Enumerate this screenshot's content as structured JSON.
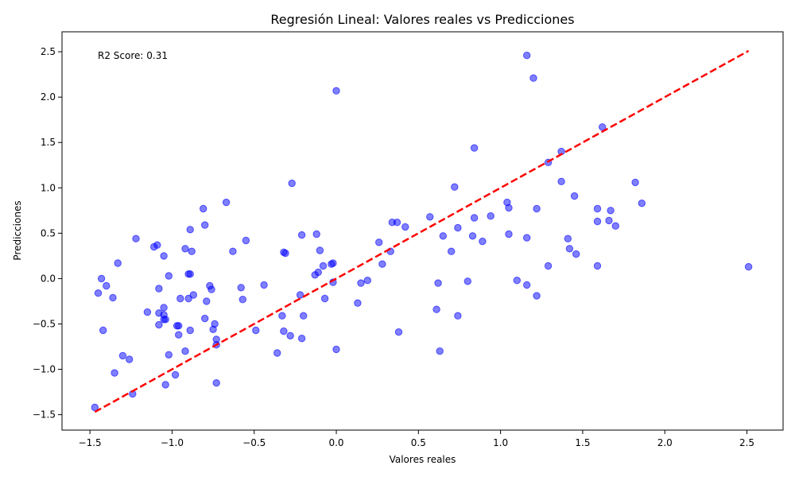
{
  "chart_data": {
    "type": "scatter",
    "title": "Regresión Lineal: Valores reales vs Predicciones",
    "xlabel": "Valores reales",
    "ylabel": "Predicciones",
    "xlim": [
      -1.67,
      2.72
    ],
    "ylim": [
      -1.67,
      2.72
    ],
    "xticks": [
      -1.5,
      -1.0,
      -0.5,
      0.0,
      0.5,
      1.0,
      1.5,
      2.0,
      2.5
    ],
    "yticks": [
      -1.5,
      -1.0,
      -0.5,
      0.0,
      0.5,
      1.0,
      1.5,
      2.0,
      2.5
    ],
    "xtick_labels": [
      "−1.5",
      "−1.0",
      "−0.5",
      "0.0",
      "0.5",
      "1.0",
      "1.5",
      "2.0",
      "2.5"
    ],
    "ytick_labels": [
      "−1.5",
      "−1.0",
      "−0.5",
      "0.0",
      "0.5",
      "1.0",
      "1.5",
      "2.0",
      "2.5"
    ],
    "annotation": "R2 Score: 0.31",
    "grid": false,
    "point_color": "#0000ff",
    "line_color": "#ff0000",
    "reference_line": {
      "x": [
        -1.47,
        2.51
      ],
      "y": [
        -1.47,
        2.51
      ]
    },
    "points": [
      [
        1.16,
        2.46
      ],
      [
        1.2,
        2.21
      ],
      [
        0.0,
        2.07
      ],
      [
        1.62,
        1.67
      ],
      [
        0.84,
        1.44
      ],
      [
        1.37,
        1.4
      ],
      [
        1.29,
        1.28
      ],
      [
        -0.27,
        1.05
      ],
      [
        1.37,
        1.07
      ],
      [
        1.82,
        1.06
      ],
      [
        0.72,
        1.01
      ],
      [
        1.45,
        0.91
      ],
      [
        -0.67,
        0.84
      ],
      [
        1.04,
        0.84
      ],
      [
        1.86,
        0.83
      ],
      [
        -0.81,
        0.77
      ],
      [
        1.05,
        0.78
      ],
      [
        1.22,
        0.77
      ],
      [
        1.59,
        0.77
      ],
      [
        1.67,
        0.75
      ],
      [
        0.94,
        0.69
      ],
      [
        0.57,
        0.68
      ],
      [
        0.84,
        0.67
      ],
      [
        1.59,
        0.63
      ],
      [
        1.66,
        0.64
      ],
      [
        0.34,
        0.62
      ],
      [
        0.37,
        0.62
      ],
      [
        -0.8,
        0.59
      ],
      [
        1.7,
        0.58
      ],
      [
        0.42,
        0.57
      ],
      [
        0.74,
        0.56
      ],
      [
        -0.89,
        0.54
      ],
      [
        -0.21,
        0.48
      ],
      [
        -0.12,
        0.49
      ],
      [
        0.65,
        0.47
      ],
      [
        0.83,
        0.47
      ],
      [
        1.05,
        0.49
      ],
      [
        1.16,
        0.45
      ],
      [
        -1.22,
        0.44
      ],
      [
        1.41,
        0.44
      ],
      [
        -0.55,
        0.42
      ],
      [
        0.89,
        0.41
      ],
      [
        0.26,
        0.4
      ],
      [
        -1.09,
        0.37
      ],
      [
        -1.11,
        0.35
      ],
      [
        -0.92,
        0.33
      ],
      [
        1.42,
        0.33
      ],
      [
        -0.88,
        0.3
      ],
      [
        -0.63,
        0.3
      ],
      [
        -0.32,
        0.29
      ],
      [
        -0.31,
        0.28
      ],
      [
        -0.1,
        0.31
      ],
      [
        0.33,
        0.3
      ],
      [
        0.7,
        0.3
      ],
      [
        1.46,
        0.27
      ],
      [
        -1.05,
        0.25
      ],
      [
        -1.33,
        0.17
      ],
      [
        0.28,
        0.16
      ],
      [
        -0.08,
        0.14
      ],
      [
        -0.03,
        0.16
      ],
      [
        -0.02,
        0.17
      ],
      [
        1.29,
        0.14
      ],
      [
        1.59,
        0.14
      ],
      [
        2.51,
        0.13
      ],
      [
        -0.11,
        0.07
      ],
      [
        -0.13,
        0.04
      ],
      [
        -0.9,
        0.05
      ],
      [
        -0.89,
        0.05
      ],
      [
        -1.02,
        0.03
      ],
      [
        -1.43,
        0.0
      ],
      [
        0.19,
        -0.02
      ],
      [
        0.8,
        -0.03
      ],
      [
        1.1,
        -0.02
      ],
      [
        -0.02,
        -0.04
      ],
      [
        0.15,
        -0.05
      ],
      [
        0.62,
        -0.05
      ],
      [
        1.16,
        -0.07
      ],
      [
        -1.4,
        -0.08
      ],
      [
        -0.77,
        -0.08
      ],
      [
        -0.58,
        -0.1
      ],
      [
        -0.44,
        -0.07
      ],
      [
        -1.08,
        -0.11
      ],
      [
        -0.76,
        -0.12
      ],
      [
        -1.45,
        -0.16
      ],
      [
        -0.22,
        -0.18
      ],
      [
        -0.87,
        -0.18
      ],
      [
        1.22,
        -0.19
      ],
      [
        -1.36,
        -0.21
      ],
      [
        -0.95,
        -0.22
      ],
      [
        -0.9,
        -0.22
      ],
      [
        -0.57,
        -0.23
      ],
      [
        -0.07,
        -0.22
      ],
      [
        -0.79,
        -0.25
      ],
      [
        0.13,
        -0.27
      ],
      [
        -1.05,
        -0.32
      ],
      [
        0.61,
        -0.34
      ],
      [
        -1.15,
        -0.37
      ],
      [
        -1.08,
        -0.38
      ],
      [
        -1.05,
        -0.4
      ],
      [
        -0.33,
        -0.41
      ],
      [
        -0.2,
        -0.41
      ],
      [
        0.74,
        -0.41
      ],
      [
        -1.05,
        -0.45
      ],
      [
        -1.04,
        -0.45
      ],
      [
        -0.8,
        -0.44
      ],
      [
        -1.08,
        -0.51
      ],
      [
        -0.97,
        -0.52
      ],
      [
        -0.96,
        -0.52
      ],
      [
        -0.74,
        -0.5
      ],
      [
        -1.42,
        -0.57
      ],
      [
        -0.89,
        -0.57
      ],
      [
        -0.75,
        -0.56
      ],
      [
        -0.49,
        -0.57
      ],
      [
        -0.32,
        -0.58
      ],
      [
        0.38,
        -0.59
      ],
      [
        -0.96,
        -0.62
      ],
      [
        -0.28,
        -0.63
      ],
      [
        -0.21,
        -0.66
      ],
      [
        -0.73,
        -0.67
      ],
      [
        -0.73,
        -0.73
      ],
      [
        0.0,
        -0.78
      ],
      [
        -0.92,
        -0.8
      ],
      [
        0.63,
        -0.8
      ],
      [
        -1.02,
        -0.84
      ],
      [
        -0.36,
        -0.82
      ],
      [
        -1.3,
        -0.85
      ],
      [
        -1.26,
        -0.89
      ],
      [
        -1.35,
        -1.04
      ],
      [
        -0.98,
        -1.06
      ],
      [
        -0.73,
        -1.15
      ],
      [
        -1.04,
        -1.17
      ],
      [
        -1.24,
        -1.27
      ],
      [
        -1.47,
        -1.42
      ]
    ]
  }
}
